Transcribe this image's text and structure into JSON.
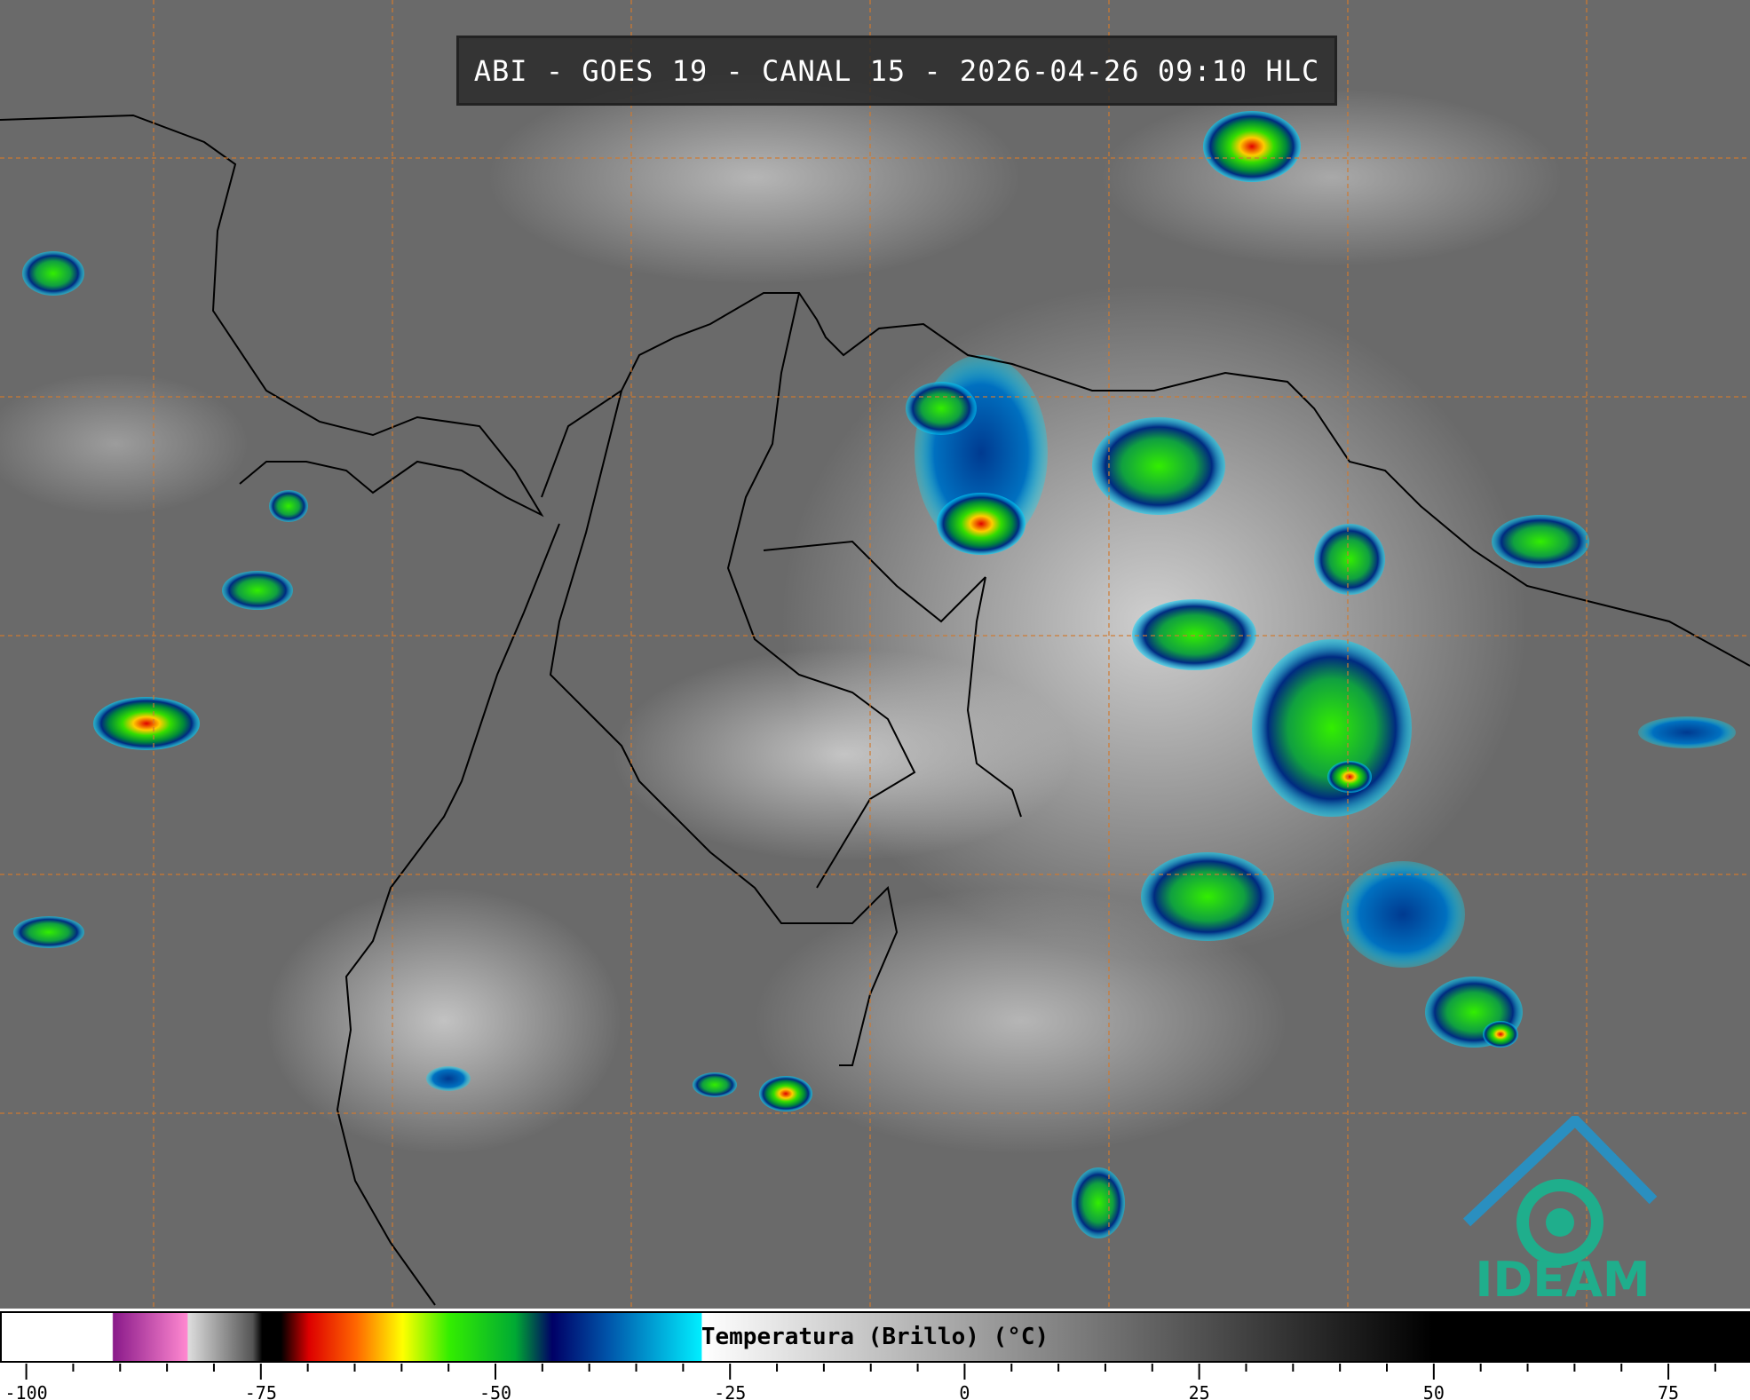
{
  "header": {
    "title": "ABI - GOES 19 - CANAL 15 - 2026-04-26 09:10 HLC"
  },
  "logo": {
    "text": "IDEAM",
    "color": "#1fae8c"
  },
  "colorbar": {
    "label": "Temperatura (Brillo) (°C)",
    "range": [
      -102.8,
      83.7
    ],
    "major_ticks": [
      -100,
      -75,
      -50,
      -25,
      0,
      25,
      50,
      75
    ],
    "tick_labels": [
      "-100",
      "-75",
      "-50",
      "-25",
      "0",
      "25",
      "50",
      "75"
    ],
    "minor_step": 5,
    "stops": [
      {
        "t": -102.8,
        "c": "#ffffff"
      },
      {
        "t": -91,
        "c": "#ffffff"
      },
      {
        "t": -90.9,
        "c": "#8a1a8a"
      },
      {
        "t": -83,
        "c": "#ff88d0"
      },
      {
        "t": -82.9,
        "c": "#dddddd"
      },
      {
        "t": -76,
        "c": "#555555"
      },
      {
        "t": -75,
        "c": "#000000"
      },
      {
        "t": -73,
        "c": "#000000"
      },
      {
        "t": -70,
        "c": "#dd0000"
      },
      {
        "t": -65,
        "c": "#ff6600"
      },
      {
        "t": -60,
        "c": "#ffff00"
      },
      {
        "t": -55,
        "c": "#33ee00"
      },
      {
        "t": -48,
        "c": "#00aa33"
      },
      {
        "t": -44,
        "c": "#000066"
      },
      {
        "t": -38,
        "c": "#0055aa"
      },
      {
        "t": -28.1,
        "c": "#00eeff"
      },
      {
        "t": -28,
        "c": "#ffffff"
      },
      {
        "t": 50,
        "c": "#000000"
      },
      {
        "t": 83.7,
        "c": "#000000"
      }
    ]
  },
  "map": {
    "grid_color": "#d07a30",
    "coast_color": "#000000"
  }
}
